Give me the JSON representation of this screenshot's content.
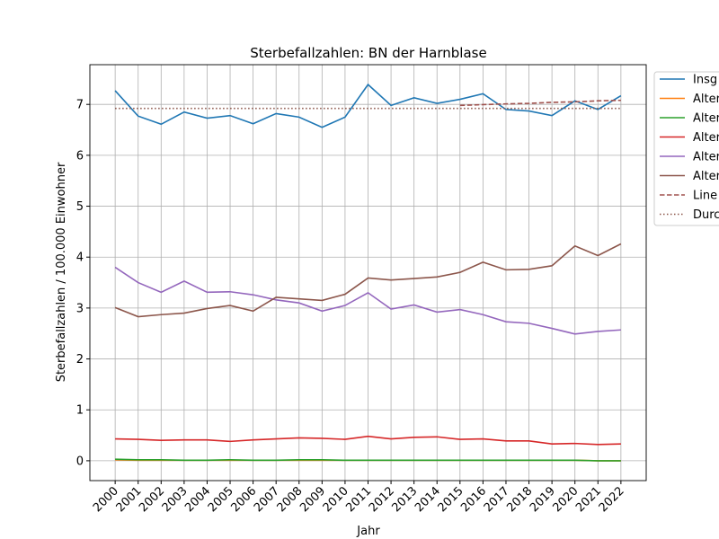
{
  "chart_data": {
    "type": "line",
    "title": "Sterbefallzahlen: BN der Harnblase",
    "xlabel": "Jahr",
    "ylabel": "Sterbefallzahlen / 100.000 Einwohner",
    "x": [
      2000,
      2001,
      2002,
      2003,
      2004,
      2005,
      2006,
      2007,
      2008,
      2009,
      2010,
      2011,
      2012,
      2013,
      2014,
      2015,
      2016,
      2017,
      2018,
      2019,
      2020,
      2021,
      2022
    ],
    "xlim": [
      1998.9,
      2023.1
    ],
    "xticks": [
      2000,
      2001,
      2002,
      2003,
      2004,
      2005,
      2006,
      2007,
      2008,
      2009,
      2010,
      2011,
      2012,
      2013,
      2014,
      2015,
      2016,
      2017,
      2018,
      2019,
      2020,
      2021,
      2022
    ],
    "ylim": [
      -0.39,
      7.78
    ],
    "yticks": [
      0,
      1,
      2,
      3,
      4,
      5,
      6,
      7
    ],
    "grid": true,
    "legend": "outside right",
    "series": [
      {
        "name": "Insg",
        "color": "#1f77b4",
        "dash": "solid",
        "values": [
          7.27,
          6.77,
          6.61,
          6.85,
          6.73,
          6.78,
          6.62,
          6.82,
          6.75,
          6.55,
          6.75,
          7.39,
          6.98,
          7.13,
          7.02,
          7.1,
          7.21,
          6.9,
          6.87,
          6.78,
          7.07,
          6.9,
          7.17
        ]
      },
      {
        "name": "Alter",
        "color": "#ff7f0e",
        "dash": "solid",
        "values": [
          0.02,
          0.01,
          0.01,
          0.01,
          0.01,
          0.01,
          0.01,
          0.01,
          0.01,
          0.01,
          0.01,
          0.01,
          0.01,
          0.01,
          0.01,
          0.01,
          0.01,
          0.01,
          0.01,
          0.01,
          0.01,
          0.0,
          0.0
        ]
      },
      {
        "name": "Alter",
        "color": "#2ca02c",
        "dash": "solid",
        "values": [
          0.03,
          0.02,
          0.02,
          0.01,
          0.01,
          0.02,
          0.01,
          0.01,
          0.02,
          0.02,
          0.01,
          0.01,
          0.01,
          0.01,
          0.01,
          0.01,
          0.01,
          0.01,
          0.01,
          0.01,
          0.01,
          0.0,
          0.0
        ]
      },
      {
        "name": "Alter",
        "color": "#d62728",
        "dash": "solid",
        "values": [
          0.43,
          0.42,
          0.4,
          0.41,
          0.41,
          0.38,
          0.41,
          0.43,
          0.45,
          0.44,
          0.42,
          0.48,
          0.43,
          0.46,
          0.47,
          0.42,
          0.43,
          0.39,
          0.39,
          0.33,
          0.34,
          0.32,
          0.33
        ]
      },
      {
        "name": "Alter",
        "color": "#9467bd",
        "dash": "solid",
        "values": [
          3.8,
          3.5,
          3.31,
          3.53,
          3.31,
          3.32,
          3.26,
          3.16,
          3.1,
          2.94,
          3.05,
          3.3,
          2.98,
          3.06,
          2.92,
          2.97,
          2.87,
          2.73,
          2.7,
          2.6,
          2.49,
          2.54,
          2.57
        ]
      },
      {
        "name": "Alter",
        "color": "#8c564b",
        "dash": "solid",
        "values": [
          3.01,
          2.83,
          2.87,
          2.9,
          2.99,
          3.05,
          2.94,
          3.21,
          3.18,
          3.15,
          3.27,
          3.59,
          3.55,
          3.58,
          3.61,
          3.7,
          3.9,
          3.75,
          3.76,
          3.83,
          4.22,
          4.03,
          4.26
        ]
      },
      {
        "name": "Line",
        "color": "#a0524e",
        "dash": "dashed",
        "x": [
          2015,
          2016,
          2017,
          2018,
          2019,
          2020,
          2021,
          2022
        ],
        "values": [
          6.98,
          6.995,
          7.01,
          7.02,
          7.04,
          7.05,
          7.07,
          7.08
        ]
      },
      {
        "name": "Durc",
        "color": "#8c564b",
        "dash": "dotted",
        "x": [
          2000,
          2022
        ],
        "values": [
          6.92,
          6.92
        ]
      }
    ]
  }
}
